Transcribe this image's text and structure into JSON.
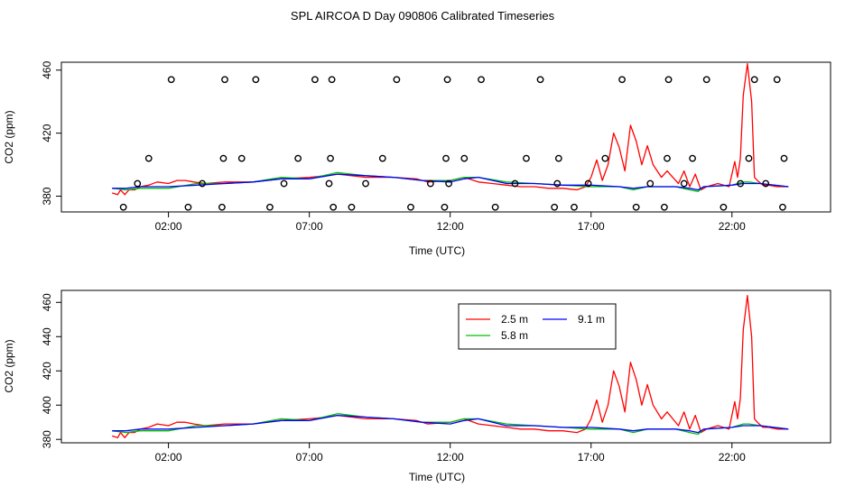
{
  "title": "SPL AIRCOA D  Day 090806  Calibrated Timeseries",
  "series_colors": {
    "2.5 m": "#ff0000",
    "5.8 m": "#00c000",
    "9.1 m": "#0000ff"
  },
  "chart_data": [
    {
      "type": "line",
      "panel": "top",
      "xlabel": "Time (UTC)",
      "ylabel": "CO2 (ppm)",
      "xlim": [
        -1.8,
        25.5
      ],
      "ylim": [
        370,
        465
      ],
      "xticks": [
        2,
        7,
        12,
        17,
        22
      ],
      "xtick_labels": [
        "02:00",
        "07:00",
        "12:00",
        "17:00",
        "22:00"
      ],
      "yticks": [
        380,
        420,
        460
      ],
      "ytick_labels": [
        "380",
        "420",
        "460"
      ],
      "legend": null,
      "series": [
        {
          "name": "2.5 m",
          "x": [
            0,
            0.2,
            0.3,
            0.45,
            0.6,
            0.8,
            1.0,
            1.3,
            1.6,
            2.0,
            2.3,
            2.6,
            2.9,
            3.3,
            4.0,
            5.0,
            6.0,
            7.0,
            7.6,
            8.0,
            8.5,
            9.0,
            10.0,
            10.8,
            11.2,
            12.0,
            12.5,
            13.0,
            13.5,
            14.0,
            14.5,
            15.0,
            15.5,
            16.0,
            16.5,
            16.8,
            17.0,
            17.2,
            17.4,
            17.6,
            17.8,
            18.0,
            18.2,
            18.4,
            18.6,
            18.8,
            19.0,
            19.2,
            19.5,
            19.7,
            19.9,
            20.1,
            20.3,
            20.5,
            20.7,
            20.9,
            21.1,
            21.5,
            21.7,
            21.9,
            22.1,
            22.2,
            22.3,
            22.4,
            22.55,
            22.7,
            22.8,
            22.9,
            23.1,
            23.3,
            23.6,
            24.0
          ],
          "values": [
            382,
            381,
            384,
            381,
            384,
            384,
            386,
            387,
            389,
            388,
            390,
            390,
            389,
            388,
            389,
            389,
            391,
            392,
            393,
            394,
            393,
            392,
            392,
            391,
            389,
            390,
            392,
            389,
            388,
            387,
            386,
            386,
            385,
            385,
            384,
            386,
            392,
            403,
            390,
            400,
            420,
            411,
            396,
            425,
            415,
            400,
            412,
            400,
            392,
            396,
            392,
            388,
            396,
            386,
            394,
            384,
            386,
            388,
            387,
            386,
            402,
            392,
            404,
            444,
            464,
            440,
            392,
            390,
            387,
            387,
            386,
            386
          ]
        },
        {
          "name": "5.8 m",
          "x": [
            0,
            0.5,
            1.0,
            2.0,
            3.0,
            4.0,
            5.0,
            6.0,
            7.0,
            8.0,
            9.0,
            10.0,
            11.0,
            12.0,
            12.5,
            13.0,
            14.0,
            15.0,
            16.0,
            17.0,
            18.0,
            18.5,
            19.0,
            19.5,
            20.0,
            20.5,
            20.8,
            21.0,
            22.0,
            22.4,
            22.6,
            23.0,
            24.0
          ],
          "values": [
            385,
            384,
            385,
            385,
            388,
            388,
            389,
            392,
            391,
            395,
            393,
            392,
            390,
            390,
            392,
            392,
            389,
            388,
            387,
            386,
            386,
            384,
            386,
            386,
            386,
            384,
            383,
            386,
            387,
            389,
            389,
            388,
            386
          ]
        },
        {
          "name": "9.1 m",
          "x": [
            0,
            0.5,
            1.0,
            2.0,
            3.0,
            4.0,
            5.0,
            6.0,
            7.0,
            8.0,
            9.0,
            10.0,
            11.0,
            12.0,
            12.5,
            13.0,
            14.0,
            15.0,
            16.0,
            17.0,
            18.0,
            18.5,
            19.0,
            19.5,
            20.0,
            20.5,
            20.8,
            21.0,
            22.0,
            22.4,
            22.6,
            23.0,
            24.0
          ],
          "values": [
            385,
            385,
            386,
            386,
            387,
            388,
            389,
            391,
            391,
            394,
            393,
            392,
            390,
            389,
            391,
            392,
            388,
            388,
            387,
            387,
            386,
            385,
            386,
            386,
            386,
            385,
            384,
            386,
            387,
            388,
            388,
            388,
            386
          ]
        },
        {
          "name": "flags",
          "style": "points",
          "x": [
            0.4,
            0.9,
            1.3,
            2.1,
            2.7,
            3.2,
            3.9,
            3.95,
            4.0,
            4.6,
            5.1,
            5.6,
            6.1,
            6.6,
            7.2,
            7.7,
            7.75,
            7.8,
            7.85,
            8.5,
            9.0,
            9.6,
            10.1,
            10.6,
            11.3,
            11.8,
            11.85,
            11.9,
            11.95,
            12.5,
            13.1,
            13.6,
            14.3,
            14.7,
            15.2,
            15.7,
            15.8,
            15.85,
            16.4,
            16.9,
            17.5,
            18.1,
            18.6,
            19.1,
            19.6,
            19.7,
            19.75,
            20.3,
            20.6,
            21.1,
            21.7,
            22.3,
            22.6,
            22.8,
            23.2,
            23.6,
            23.8,
            23.85
          ],
          "values": [
            373,
            388,
            404,
            454,
            373,
            388,
            373,
            404,
            454,
            404,
            454,
            373,
            388,
            404,
            454,
            388,
            404,
            454,
            373,
            373,
            388,
            404,
            454,
            373,
            388,
            373,
            404,
            454,
            388,
            404,
            454,
            373,
            388,
            404,
            454,
            373,
            388,
            404,
            373,
            388,
            404,
            454,
            373,
            388,
            373,
            404,
            454,
            388,
            404,
            454,
            373,
            388,
            404,
            454,
            388,
            454,
            373,
            404
          ]
        }
      ]
    },
    {
      "type": "line",
      "panel": "bottom",
      "xlabel": "Time (UTC)",
      "ylabel": "CO2 (ppm)",
      "xlim": [
        -1.8,
        25.5
      ],
      "ylim": [
        378,
        467
      ],
      "xticks": [
        2,
        7,
        12,
        17,
        22
      ],
      "xtick_labels": [
        "02:00",
        "07:00",
        "12:00",
        "17:00",
        "22:00"
      ],
      "yticks": [
        380,
        400,
        420,
        440,
        460
      ],
      "ytick_labels": [
        "380",
        "400",
        "420",
        "440",
        "460"
      ],
      "legend": {
        "placement": "top-center",
        "entries": [
          "2.5 m",
          "9.1 m",
          "5.8 m"
        ]
      },
      "series": [
        {
          "name": "2.5 m",
          "x": [
            0,
            0.2,
            0.3,
            0.45,
            0.6,
            0.8,
            1.0,
            1.3,
            1.6,
            2.0,
            2.3,
            2.6,
            2.9,
            3.3,
            4.0,
            5.0,
            6.0,
            7.0,
            7.6,
            8.0,
            8.5,
            9.0,
            10.0,
            10.8,
            11.2,
            12.0,
            12.5,
            13.0,
            13.5,
            14.0,
            14.5,
            15.0,
            15.5,
            16.0,
            16.5,
            16.8,
            17.0,
            17.2,
            17.4,
            17.6,
            17.8,
            18.0,
            18.2,
            18.4,
            18.6,
            18.8,
            19.0,
            19.2,
            19.5,
            19.7,
            19.9,
            20.1,
            20.3,
            20.5,
            20.7,
            20.9,
            21.1,
            21.5,
            21.7,
            21.9,
            22.1,
            22.2,
            22.3,
            22.4,
            22.55,
            22.7,
            22.8,
            22.9,
            23.1,
            23.3,
            23.6,
            24.0
          ],
          "values": [
            382,
            381,
            384,
            381,
            384,
            384,
            386,
            387,
            389,
            388,
            390,
            390,
            389,
            388,
            389,
            389,
            391,
            392,
            393,
            394,
            393,
            392,
            392,
            391,
            389,
            390,
            392,
            389,
            388,
            387,
            386,
            386,
            385,
            385,
            384,
            386,
            392,
            403,
            390,
            400,
            420,
            411,
            396,
            425,
            415,
            400,
            412,
            400,
            392,
            396,
            392,
            388,
            396,
            386,
            394,
            384,
            386,
            388,
            387,
            386,
            402,
            392,
            404,
            444,
            464,
            440,
            392,
            390,
            387,
            387,
            386,
            386
          ]
        },
        {
          "name": "5.8 m",
          "x": [
            0,
            0.5,
            1.0,
            2.0,
            3.0,
            4.0,
            5.0,
            6.0,
            7.0,
            8.0,
            9.0,
            10.0,
            11.0,
            12.0,
            12.5,
            13.0,
            14.0,
            15.0,
            16.0,
            17.0,
            18.0,
            18.5,
            19.0,
            19.5,
            20.0,
            20.5,
            20.8,
            21.0,
            22.0,
            22.4,
            22.6,
            23.0,
            24.0
          ],
          "values": [
            385,
            384,
            385,
            385,
            388,
            388,
            389,
            392,
            391,
            395,
            393,
            392,
            390,
            390,
            392,
            392,
            389,
            388,
            387,
            386,
            386,
            384,
            386,
            386,
            386,
            384,
            383,
            386,
            387,
            389,
            389,
            388,
            386
          ]
        },
        {
          "name": "9.1 m",
          "x": [
            0,
            0.5,
            1.0,
            2.0,
            3.0,
            4.0,
            5.0,
            6.0,
            7.0,
            8.0,
            9.0,
            10.0,
            11.0,
            12.0,
            12.5,
            13.0,
            14.0,
            15.0,
            16.0,
            17.0,
            18.0,
            18.5,
            19.0,
            19.5,
            20.0,
            20.5,
            20.8,
            21.0,
            22.0,
            22.4,
            22.6,
            23.0,
            24.0
          ],
          "values": [
            385,
            385,
            386,
            386,
            387,
            388,
            389,
            391,
            391,
            394,
            393,
            392,
            390,
            389,
            391,
            392,
            388,
            388,
            387,
            387,
            386,
            385,
            386,
            386,
            386,
            385,
            384,
            386,
            387,
            388,
            388,
            388,
            386
          ]
        }
      ]
    }
  ]
}
